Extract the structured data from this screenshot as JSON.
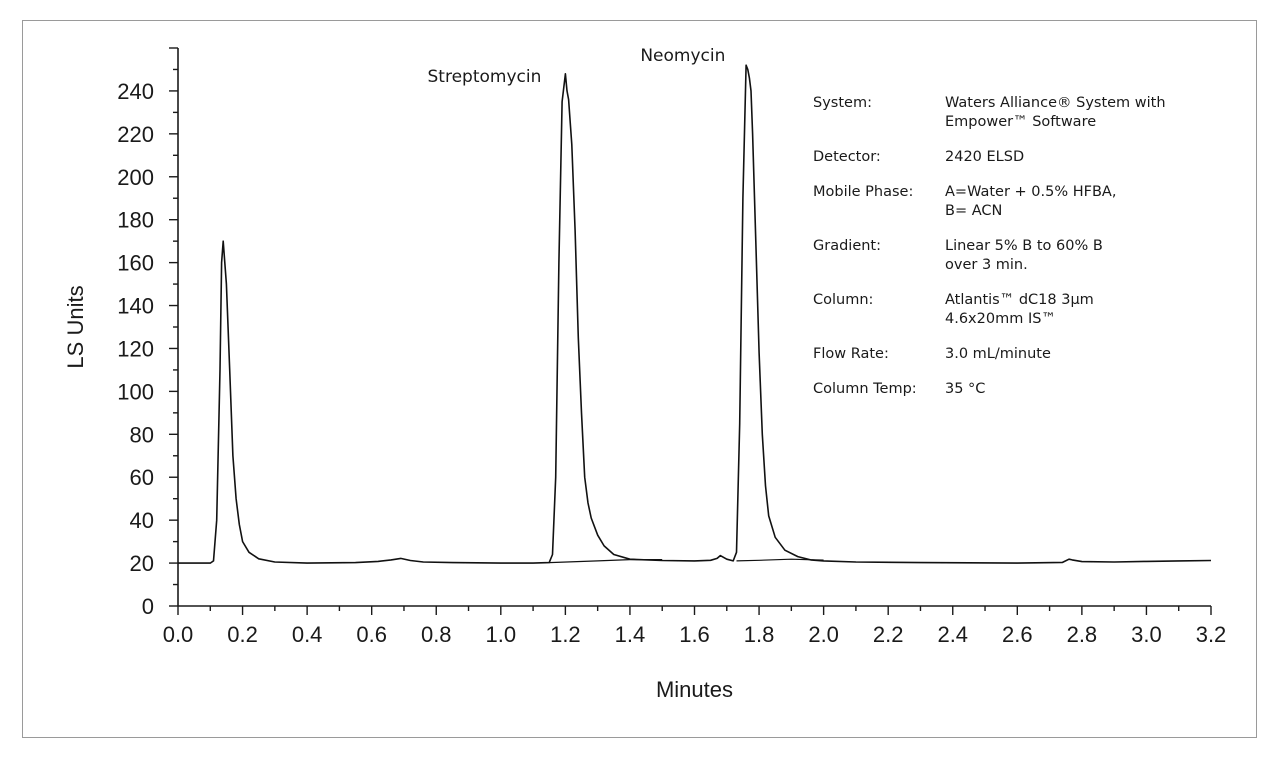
{
  "chart_data": {
    "type": "line",
    "xlabel": "Minutes",
    "ylabel": "LS Units",
    "xlim": [
      0.0,
      3.2
    ],
    "ylim": [
      0,
      260
    ],
    "grid": false,
    "x_ticks": [
      "0.0",
      "0.2",
      "0.4",
      "0.6",
      "0.8",
      "1.0",
      "1.2",
      "1.4",
      "1.6",
      "1.8",
      "2.0",
      "2.2",
      "2.4",
      "2.6",
      "2.8",
      "3.0",
      "3.2"
    ],
    "y_ticks": [
      "0",
      "20",
      "40",
      "60",
      "80",
      "100",
      "120",
      "140",
      "160",
      "180",
      "200",
      "220",
      "240"
    ],
    "annotations": [
      {
        "text": "Streptomycin",
        "x": 1.2,
        "y": 248
      },
      {
        "text": "Neomycin",
        "x": 1.77,
        "y": 252
      }
    ],
    "conditions": [
      {
        "label": "System:",
        "lines": [
          "Waters Alliance® System with",
          "Empower™ Software"
        ]
      },
      {
        "label": "Detector:",
        "lines": [
          "2420 ELSD"
        ]
      },
      {
        "label": "Mobile Phase:",
        "lines": [
          "A=Water + 0.5% HFBA,",
          "B= ACN"
        ]
      },
      {
        "label": "Gradient:",
        "lines": [
          "Linear 5% B to 60% B",
          "over 3 min."
        ]
      },
      {
        "label": "Column:",
        "lines": [
          "Atlantis™ dC18 3µm",
          "4.6x20mm IS™"
        ]
      },
      {
        "label": "Flow Rate:",
        "lines": [
          "3.0 mL/minute"
        ]
      },
      {
        "label": "Column Temp:",
        "lines": [
          "35 °C"
        ]
      }
    ],
    "series": [
      {
        "x": [
          0.0,
          0.1,
          0.11,
          0.12,
          0.13,
          0.135,
          0.14,
          0.15,
          0.16,
          0.17,
          0.18,
          0.19,
          0.2,
          0.22,
          0.25,
          0.3,
          0.4,
          0.55,
          0.62,
          0.66,
          0.69,
          0.72,
          0.76,
          0.85,
          1.0,
          1.1,
          1.15,
          1.16,
          1.17,
          1.18,
          1.19,
          1.2,
          1.205,
          1.21,
          1.22,
          1.23,
          1.24,
          1.25,
          1.26,
          1.27,
          1.28,
          1.3,
          1.32,
          1.35,
          1.4,
          1.5,
          1.6,
          1.65,
          1.67,
          1.68,
          1.7,
          1.72,
          1.73,
          1.74,
          1.75,
          1.76,
          1.765,
          1.77,
          1.775,
          1.78,
          1.79,
          1.8,
          1.81,
          1.82,
          1.83,
          1.85,
          1.88,
          1.92,
          1.96,
          2.0,
          2.1,
          2.3,
          2.6,
          2.74,
          2.76,
          2.77,
          2.8,
          2.9,
          3.0,
          3.1,
          3.2
        ],
        "y": [
          20,
          20,
          21,
          40,
          110,
          160,
          170,
          150,
          110,
          70,
          50,
          38,
          30,
          25,
          22,
          20.5,
          20,
          20.2,
          20.8,
          21.5,
          22.2,
          21.2,
          20.5,
          20.2,
          20,
          20,
          20.2,
          24,
          60,
          160,
          235,
          248,
          240,
          236,
          215,
          175,
          125,
          90,
          60,
          48,
          41,
          33,
          28,
          24,
          21.8,
          21.2,
          21,
          21.3,
          22.2,
          23.5,
          21.8,
          21,
          25,
          85,
          190,
          252,
          250,
          246,
          240,
          220,
          170,
          118,
          80,
          56,
          42,
          32,
          26,
          23,
          21.5,
          21,
          20.5,
          20.2,
          20,
          20.3,
          21.8,
          21.5,
          20.7,
          20.5,
          20.8,
          21,
          21.2
        ]
      },
      {
        "x": [
          1.15,
          1.3,
          1.4,
          1.5
        ],
        "y": [
          20.2,
          21.0,
          21.6,
          21.6
        ]
      },
      {
        "x": [
          1.73,
          1.8,
          1.9,
          2.0
        ],
        "y": [
          21,
          21.3,
          21.8,
          21.4
        ]
      }
    ]
  }
}
